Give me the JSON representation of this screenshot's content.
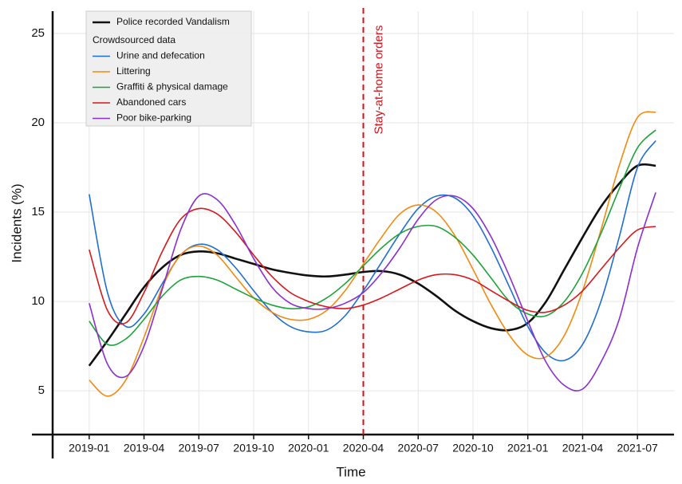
{
  "chart_data": {
    "type": "line",
    "x_label": "Time",
    "y_label": "Incidents (%)",
    "legend_subtitle": "Crowdsourced data",
    "annotation": {
      "x": "2020-04",
      "label": "Stay-at-home orders",
      "color": "#d0121b"
    },
    "x": [
      "2019-01",
      "2019-02",
      "2019-03",
      "2019-04",
      "2019-05",
      "2019-06",
      "2019-07",
      "2019-08",
      "2019-09",
      "2019-10",
      "2019-11",
      "2019-12",
      "2020-01",
      "2020-02",
      "2020-03",
      "2020-04",
      "2020-05",
      "2020-06",
      "2020-07",
      "2020-08",
      "2020-09",
      "2020-10",
      "2020-11",
      "2020-12",
      "2021-01",
      "2021-02",
      "2021-03",
      "2021-04",
      "2021-05",
      "2021-06",
      "2021-07",
      "2021-08"
    ],
    "xlim": [
      "2018-11",
      "2021-09"
    ],
    "xticks": [
      "2019-01",
      "2019-04",
      "2019-07",
      "2019-10",
      "2020-01",
      "2020-04",
      "2020-07",
      "2020-10",
      "2021-01",
      "2021-04",
      "2021-07"
    ],
    "ylim": [
      2.55,
      26.25
    ],
    "yticks": [
      5,
      10,
      15,
      20,
      25
    ],
    "grid": true,
    "legend": "upper left",
    "series": [
      {
        "name": "Police recorded  Vandalism",
        "color": "#111111",
        "values": [
          6.4,
          7.8,
          9.3,
          10.8,
          11.9,
          12.6,
          12.8,
          12.7,
          12.4,
          12.1,
          11.8,
          11.6,
          11.45,
          11.4,
          11.5,
          11.65,
          11.7,
          11.5,
          11.0,
          10.3,
          9.5,
          8.9,
          8.5,
          8.4,
          8.8,
          10.0,
          11.8,
          13.6,
          15.3,
          16.6,
          17.6,
          17.6
        ]
      },
      {
        "name": "Urine and defecation",
        "color": "#1f6fd1",
        "values": [
          16.0,
          10.5,
          8.6,
          9.3,
          11.0,
          12.6,
          13.2,
          12.9,
          11.9,
          10.6,
          9.4,
          8.6,
          8.3,
          8.4,
          9.2,
          10.6,
          12.2,
          13.8,
          15.2,
          15.9,
          15.8,
          14.8,
          13.0,
          10.8,
          8.6,
          7.1,
          6.7,
          7.6,
          10.0,
          13.6,
          17.5,
          19.0
        ]
      },
      {
        "name": "Littering",
        "color": "#f28a10",
        "values": [
          5.6,
          4.7,
          5.6,
          8.0,
          10.8,
          12.6,
          13.1,
          12.6,
          11.4,
          10.2,
          9.4,
          9.0,
          9.0,
          9.5,
          10.6,
          12.1,
          13.6,
          14.9,
          15.4,
          15.0,
          13.7,
          11.8,
          9.8,
          8.1,
          7.0,
          6.9,
          8.1,
          10.6,
          14.0,
          17.6,
          20.3,
          20.6
        ]
      },
      {
        "name": "Graffiti & physical damage",
        "color": "#1ea33a",
        "values": [
          8.9,
          7.6,
          7.9,
          9.0,
          10.3,
          11.2,
          11.4,
          11.2,
          10.7,
          10.2,
          9.8,
          9.6,
          9.7,
          10.2,
          11.0,
          12.0,
          13.0,
          13.8,
          14.2,
          14.2,
          13.6,
          12.6,
          11.3,
          10.0,
          9.3,
          9.2,
          10.0,
          11.6,
          13.8,
          16.3,
          18.6,
          19.6
        ]
      },
      {
        "name": "Abandoned cars",
        "color": "#d7191c",
        "values": [
          12.9,
          9.5,
          8.8,
          10.5,
          12.8,
          14.6,
          15.2,
          14.9,
          13.9,
          12.6,
          11.4,
          10.5,
          10.0,
          9.7,
          9.6,
          9.8,
          10.2,
          10.7,
          11.2,
          11.5,
          11.5,
          11.2,
          10.6,
          10.0,
          9.5,
          9.4,
          9.8,
          10.6,
          11.8,
          13.0,
          14.0,
          14.2
        ]
      },
      {
        "name": "Poor bike-parking",
        "color": "#8b2fd0",
        "values": [
          9.9,
          6.5,
          5.8,
          7.5,
          10.7,
          14.0,
          15.9,
          15.7,
          14.3,
          12.4,
          10.8,
          9.9,
          9.6,
          9.6,
          9.9,
          10.5,
          11.6,
          13.0,
          14.6,
          15.7,
          15.9,
          15.2,
          13.6,
          11.4,
          8.9,
          6.6,
          5.3,
          5.1,
          6.6,
          9.0,
          13.0,
          16.1
        ]
      }
    ]
  }
}
